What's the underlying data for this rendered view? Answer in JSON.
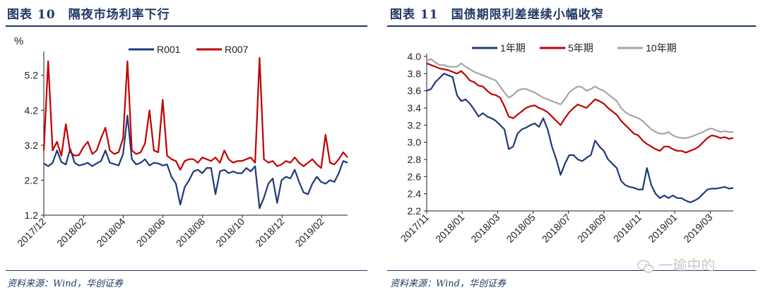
{
  "watermark": {
    "text": "一瑜中的"
  },
  "charts": [
    {
      "title": "图表 10　隔夜市场利率下行",
      "source": "资料来源：Wind，华创证券",
      "unit": "%",
      "chart_data": {
        "type": "line",
        "yticks": [
          "1.2",
          "2.2",
          "3.2",
          "4.2",
          "5.2"
        ],
        "ylim": [
          1.2,
          5.8
        ],
        "xticks": [
          "2017/12",
          "2018/02",
          "2018/04",
          "2018/06",
          "2018/08",
          "2018/10",
          "2018/12",
          "2019/02"
        ],
        "xlim": [
          0,
          69
        ],
        "legend_position": "top",
        "grid": false,
        "series": [
          {
            "name": "R001",
            "color": "#1f3a7a",
            "values": [
              2.68,
              2.6,
              2.7,
              3.05,
              2.72,
              2.65,
              3.1,
              2.7,
              2.62,
              2.65,
              2.7,
              2.6,
              2.68,
              2.75,
              3.05,
              2.7,
              2.66,
              2.62,
              2.95,
              4.05,
              2.8,
              2.65,
              2.7,
              2.8,
              2.62,
              2.7,
              2.68,
              2.62,
              2.65,
              2.3,
              2.1,
              1.5,
              2.0,
              2.2,
              2.45,
              2.5,
              2.4,
              2.55,
              2.55,
              1.8,
              2.45,
              2.5,
              2.4,
              2.45,
              2.4,
              2.4,
              2.55,
              2.45,
              2.6,
              1.4,
              1.7,
              2.1,
              2.25,
              1.55,
              2.2,
              2.3,
              2.25,
              2.5,
              2.15,
              1.85,
              1.8,
              2.1,
              2.3,
              2.15,
              2.1,
              2.2,
              2.15,
              2.4,
              2.75,
              2.7
            ]
          },
          {
            "name": "R007",
            "color": "#c00000",
            "values": [
              3.05,
              5.6,
              3.05,
              3.3,
              2.9,
              3.8,
              3.0,
              2.9,
              2.92,
              3.15,
              3.3,
              2.95,
              3.05,
              3.4,
              3.7,
              3.05,
              2.95,
              3.0,
              3.4,
              5.6,
              3.05,
              2.95,
              3.0,
              3.25,
              4.2,
              3.05,
              3.0,
              4.5,
              2.9,
              2.8,
              2.75,
              2.5,
              2.75,
              2.8,
              2.8,
              2.7,
              2.85,
              2.8,
              2.75,
              2.85,
              2.7,
              3.05,
              2.8,
              2.7,
              2.75,
              2.75,
              2.8,
              2.85,
              2.7,
              5.7,
              2.8,
              2.7,
              2.75,
              2.6,
              2.65,
              2.75,
              2.7,
              2.85,
              2.7,
              2.6,
              2.7,
              2.8,
              2.65,
              2.55,
              3.5,
              2.7,
              2.65,
              2.8,
              3.0,
              2.85
            ]
          }
        ]
      }
    },
    {
      "title": "图表 11　国债期限利差继续小幅收窄",
      "source": "资料来源：Wind，华创证券",
      "chart_data": {
        "type": "line",
        "yticks": [
          "2.2",
          "2.4",
          "2.6",
          "2.8",
          "3.0",
          "3.2",
          "3.4",
          "3.6",
          "3.8",
          "4.0"
        ],
        "ylim": [
          2.2,
          4.0
        ],
        "xticks": [
          "2017/11",
          "2018/01",
          "2018/03",
          "2018/05",
          "2018/07",
          "2018/09",
          "2018/11",
          "2019/01",
          "2019/03"
        ],
        "xlim": [
          0,
          71
        ],
        "legend_position": "top",
        "grid": false,
        "series": [
          {
            "name": "1年期",
            "color": "#1f3a7a",
            "values": [
              3.6,
              3.62,
              3.7,
              3.75,
              3.8,
              3.78,
              3.76,
              3.55,
              3.48,
              3.5,
              3.45,
              3.38,
              3.3,
              3.34,
              3.3,
              3.28,
              3.25,
              3.2,
              3.15,
              2.92,
              2.95,
              3.1,
              3.15,
              3.17,
              3.2,
              3.22,
              3.18,
              3.28,
              3.15,
              2.95,
              2.8,
              2.62,
              2.75,
              2.85,
              2.85,
              2.8,
              2.78,
              2.82,
              2.85,
              3.02,
              2.95,
              2.9,
              2.8,
              2.75,
              2.7,
              2.55,
              2.5,
              2.48,
              2.47,
              2.45,
              2.45,
              2.7,
              2.5,
              2.4,
              2.35,
              2.38,
              2.35,
              2.38,
              2.35,
              2.35,
              2.32,
              2.3,
              2.32,
              2.35,
              2.4,
              2.45,
              2.46,
              2.46,
              2.47,
              2.48,
              2.46,
              2.47
            ]
          },
          {
            "name": "5年期",
            "color": "#c00000",
            "values": [
              3.92,
              3.9,
              3.88,
              3.86,
              3.85,
              3.84,
              3.82,
              3.8,
              3.83,
              3.78,
              3.72,
              3.7,
              3.66,
              3.65,
              3.6,
              3.56,
              3.55,
              3.52,
              3.42,
              3.3,
              3.28,
              3.32,
              3.36,
              3.4,
              3.42,
              3.43,
              3.4,
              3.38,
              3.35,
              3.3,
              3.25,
              3.2,
              3.28,
              3.35,
              3.4,
              3.44,
              3.42,
              3.4,
              3.45,
              3.5,
              3.48,
              3.45,
              3.4,
              3.36,
              3.32,
              3.25,
              3.2,
              3.15,
              3.1,
              3.08,
              3.02,
              2.98,
              2.95,
              2.92,
              2.9,
              2.95,
              2.95,
              2.92,
              2.9,
              2.9,
              2.88,
              2.9,
              2.92,
              2.95,
              3.0,
              3.05,
              3.08,
              3.07,
              3.05,
              3.06,
              3.04,
              3.05
            ]
          },
          {
            "name": "10年期",
            "color": "#a6a6a6",
            "values": [
              3.95,
              3.97,
              3.93,
              3.9,
              3.9,
              3.88,
              3.88,
              3.88,
              3.92,
              3.88,
              3.85,
              3.82,
              3.8,
              3.78,
              3.76,
              3.74,
              3.72,
              3.65,
              3.58,
              3.52,
              3.55,
              3.6,
              3.62,
              3.62,
              3.6,
              3.58,
              3.55,
              3.52,
              3.5,
              3.48,
              3.46,
              3.44,
              3.5,
              3.58,
              3.62,
              3.65,
              3.64,
              3.6,
              3.62,
              3.65,
              3.62,
              3.6,
              3.56,
              3.52,
              3.48,
              3.4,
              3.35,
              3.32,
              3.3,
              3.28,
              3.25,
              3.2,
              3.15,
              3.12,
              3.1,
              3.1,
              3.12,
              3.08,
              3.06,
              3.05,
              3.05,
              3.06,
              3.08,
              3.1,
              3.12,
              3.15,
              3.16,
              3.14,
              3.12,
              3.13,
              3.12,
              3.12
            ]
          }
        ]
      }
    }
  ]
}
